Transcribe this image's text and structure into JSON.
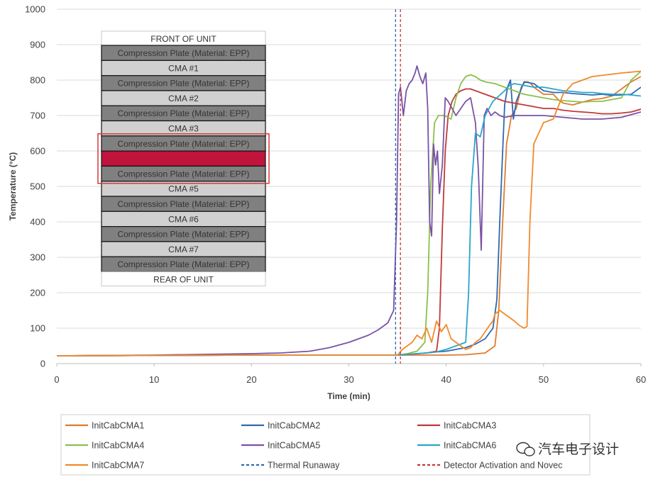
{
  "chart_data": {
    "type": "line",
    "title": "",
    "xlabel": "Time (min)",
    "ylabel": "Temperature (°C)",
    "xlim": [
      0,
      60
    ],
    "ylim": [
      0,
      1000
    ],
    "xticks": [
      0,
      10,
      20,
      30,
      40,
      50,
      60
    ],
    "yticks": [
      0,
      100,
      200,
      300,
      400,
      500,
      600,
      700,
      800,
      900,
      1000
    ],
    "grid": "horizontal",
    "series": [
      {
        "name": "InitCabCMA1",
        "color": "#e07b2e",
        "dash": "",
        "x": [
          0,
          10,
          20,
          30,
          35,
          40,
          42,
          44,
          45,
          45.4,
          45.8,
          46.2,
          46.7,
          47.2,
          47.7,
          48.1,
          48.4,
          48.7,
          49,
          49.5,
          50,
          50.5,
          51,
          51.5,
          52,
          53,
          54,
          55,
          56,
          57,
          58,
          59,
          60
        ],
        "y": [
          22,
          23,
          24,
          24,
          24,
          24,
          25,
          30,
          50,
          150,
          400,
          620,
          700,
          720,
          780,
          795,
          795,
          790,
          780,
          770,
          760,
          760,
          760,
          745,
          735,
          730,
          738,
          745,
          748,
          755,
          775,
          795,
          810
        ]
      },
      {
        "name": "InitCabCMA2",
        "color": "#2e69b0",
        "dash": "",
        "x": [
          0,
          10,
          20,
          30,
          35,
          36,
          37,
          38,
          39,
          40,
          41,
          42,
          43,
          44,
          44.8,
          45.2,
          45.5,
          45.8,
          46,
          46.3,
          46.6,
          46.9,
          47.2,
          48,
          49,
          50,
          51,
          52,
          53,
          54,
          55,
          56,
          57,
          58,
          59,
          60
        ],
        "y": [
          22,
          23,
          24,
          24,
          24,
          26,
          28,
          30,
          33,
          35,
          40,
          45,
          55,
          70,
          100,
          180,
          400,
          600,
          730,
          780,
          800,
          690,
          740,
          795,
          790,
          770,
          765,
          765,
          762,
          760,
          758,
          760,
          757,
          758,
          760,
          780
        ]
      },
      {
        "name": "InitCabCMA3",
        "color": "#c0383a",
        "dash": "",
        "x": [
          0,
          10,
          20,
          30,
          35,
          36,
          37,
          38,
          39,
          39.3,
          39.6,
          39.9,
          40.2,
          40.6,
          41,
          41.5,
          42,
          42.5,
          43,
          44,
          45,
          46,
          47,
          48,
          49,
          50,
          51,
          52,
          53,
          54,
          55,
          56,
          57,
          58,
          59,
          60
        ],
        "y": [
          22,
          23,
          24,
          24,
          24,
          26,
          28,
          30,
          35,
          100,
          380,
          600,
          700,
          740,
          760,
          770,
          775,
          775,
          770,
          760,
          750,
          740,
          735,
          730,
          725,
          720,
          720,
          715,
          712,
          710,
          708,
          705,
          705,
          707,
          710,
          718
        ]
      },
      {
        "name": "InitCabCMA4",
        "color": "#8ac04a",
        "dash": "",
        "x": [
          0,
          10,
          20,
          30,
          35,
          36,
          37,
          37.8,
          38.1,
          38.4,
          38.8,
          39.2,
          39.8,
          40.5,
          41,
          41.5,
          42,
          42.5,
          43,
          43.5,
          44,
          45,
          46,
          47,
          48,
          49,
          50,
          51,
          52,
          53,
          54,
          55,
          56,
          57,
          58,
          59,
          60
        ],
        "y": [
          22,
          23,
          24,
          24,
          24,
          28,
          35,
          60,
          200,
          500,
          680,
          700,
          700,
          690,
          750,
          790,
          810,
          815,
          810,
          800,
          795,
          790,
          780,
          770,
          760,
          755,
          750,
          745,
          742,
          740,
          738,
          740,
          740,
          745,
          750,
          800,
          825
        ]
      },
      {
        "name": "InitCabCMA5",
        "color": "#7a52a6",
        "dash": "",
        "x": [
          0,
          5,
          10,
          15,
          20,
          23,
          26,
          28,
          30,
          32,
          33,
          34,
          34.6,
          34.9,
          35.1,
          35.3,
          35.6,
          35.9,
          36.2,
          36.5,
          36.8,
          37,
          37.3,
          37.6,
          37.9,
          38.1,
          38.3,
          38.5,
          38.7,
          38.9,
          39.1,
          39.3,
          39.6,
          39.9,
          40.2,
          40.6,
          41,
          41.5,
          42,
          42.5,
          43,
          43.3,
          43.6,
          43.9,
          44.2,
          44.6,
          45,
          45.5,
          46,
          47,
          48,
          50,
          52,
          54,
          56,
          58,
          60
        ],
        "y": [
          22,
          23,
          24,
          26,
          28,
          30,
          35,
          45,
          60,
          80,
          95,
          115,
          150,
          400,
          760,
          780,
          700,
          770,
          790,
          800,
          820,
          840,
          810,
          790,
          820,
          720,
          400,
          360,
          620,
          560,
          600,
          480,
          560,
          750,
          740,
          720,
          700,
          720,
          740,
          750,
          680,
          550,
          320,
          700,
          720,
          700,
          710,
          700,
          695,
          700,
          700,
          700,
          695,
          690,
          690,
          695,
          710
        ]
      },
      {
        "name": "InitCabCMA6",
        "color": "#2aa5c9",
        "dash": "",
        "x": [
          0,
          10,
          20,
          30,
          35,
          36,
          37,
          38,
          39,
          40,
          41,
          42,
          42.3,
          42.6,
          43,
          43.5,
          44,
          44.4,
          44.8,
          45.2,
          45.6,
          46,
          46.5,
          47,
          48,
          49,
          50,
          51,
          52,
          53,
          54,
          55,
          56,
          57,
          58,
          59,
          60
        ],
        "y": [
          22,
          23,
          24,
          24,
          24,
          26,
          28,
          30,
          33,
          40,
          50,
          60,
          200,
          500,
          650,
          640,
          700,
          720,
          740,
          750,
          760,
          770,
          785,
          790,
          785,
          780,
          780,
          775,
          770,
          768,
          765,
          765,
          762,
          760,
          760,
          758,
          755
        ]
      },
      {
        "name": "InitCabCMA7",
        "color": "#f08a2c",
        "dash": "",
        "x": [
          0,
          10,
          20,
          30,
          35,
          35.5,
          36,
          36.5,
          37,
          37.5,
          38,
          38.5,
          39,
          39.5,
          40,
          40.5,
          41,
          41.5,
          42,
          42.5,
          43,
          43.5,
          44,
          44.5,
          44.8,
          45,
          45.5,
          46,
          46.5,
          47,
          47.5,
          48,
          48.3,
          48.6,
          49,
          50,
          51,
          52,
          53,
          55,
          58,
          60
        ],
        "y": [
          22,
          23,
          24,
          24,
          24,
          40,
          50,
          60,
          80,
          70,
          100,
          60,
          120,
          90,
          110,
          70,
          60,
          50,
          40,
          45,
          60,
          70,
          90,
          110,
          120,
          140,
          150,
          140,
          130,
          120,
          108,
          100,
          105,
          400,
          620,
          680,
          690,
          760,
          790,
          810,
          820,
          825
        ]
      }
    ],
    "vlines": [
      {
        "name": "Thermal Runaway",
        "x": 34.8,
        "color": "#2e69b0",
        "dash": "4,3"
      },
      {
        "name": "Detector Activation and Novec",
        "x": 35.3,
        "color": "#c0383a",
        "dash": "4,3"
      }
    ],
    "legend": {
      "placement": "bottom",
      "entries": [
        {
          "label": "InitCabCMA1",
          "color": "#e07b2e",
          "dash": ""
        },
        {
          "label": "InitCabCMA2",
          "color": "#2e69b0",
          "dash": ""
        },
        {
          "label": "InitCabCMA3",
          "color": "#c0383a",
          "dash": ""
        },
        {
          "label": "InitCabCMA4",
          "color": "#8ac04a",
          "dash": ""
        },
        {
          "label": "InitCabCMA5",
          "color": "#7a52a6",
          "dash": ""
        },
        {
          "label": "InitCabCMA6",
          "color": "#2aa5c9",
          "dash": ""
        },
        {
          "label": "InitCabCMA7",
          "color": "#f08a2c",
          "dash": ""
        },
        {
          "label": "Thermal Runaway",
          "color": "#2e69b0",
          "dash": "4,3"
        },
        {
          "label": "Detector Activation and Novec",
          "color": "#c0383a",
          "dash": "4,3"
        }
      ]
    },
    "inset": {
      "title": "FRONT OF UNIT",
      "footer": "REAR OF UNIT",
      "rows": [
        {
          "kind": "plate",
          "label": "Compression Plate (Material: EPP)"
        },
        {
          "kind": "cma",
          "label": "CMA #1"
        },
        {
          "kind": "plate",
          "label": "Compression Plate (Material: EPP)"
        },
        {
          "kind": "cma",
          "label": "CMA #2"
        },
        {
          "kind": "plate",
          "label": "Compression Plate (Material: EPP)"
        },
        {
          "kind": "cma",
          "label": "CMA #3"
        },
        {
          "kind": "plate",
          "label": "Compression Plate (Material: EPP)"
        },
        {
          "kind": "hot",
          "label": ""
        },
        {
          "kind": "plate",
          "label": "Compression Plate (Material: EPP)"
        },
        {
          "kind": "cma",
          "label": "CMA #5"
        },
        {
          "kind": "plate",
          "label": "Compression Plate (Material: EPP)"
        },
        {
          "kind": "cma",
          "label": "CMA #6"
        },
        {
          "kind": "plate",
          "label": "Compression Plate (Material: EPP)"
        },
        {
          "kind": "cma",
          "label": "CMA #7"
        },
        {
          "kind": "plate",
          "label": "Compression Plate (Material: EPP)"
        }
      ],
      "plate_color": "#808080",
      "cma_color": "#d0d0d0",
      "hot_color": "#c0143c",
      "highlight_color": "#d23a3a"
    },
    "colors": {
      "grid": "#d9d9d9",
      "axis": "#bfbfbf"
    }
  },
  "watermark": {
    "text": "汽车电子设计",
    "icon": "wechat-icon"
  }
}
